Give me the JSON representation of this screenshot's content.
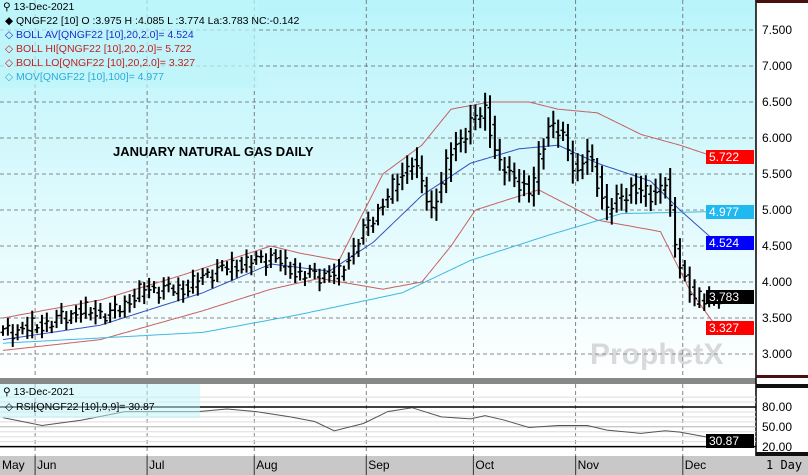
{
  "legend": {
    "date": "13-Dec-2021",
    "price": "QNGF22 [10] O :3.975 H :4.085 L :3.774 La:3.783 NC:-0.142",
    "boll_av": "BOLL AV[QNGF22 [10],20,2.0]= 4.524",
    "boll_hi": "BOLL HI[QNGF22 [10],20,2.0]= 5.722",
    "boll_lo": "BOLL LO[QNGF22 [10],20,2.0]= 3.327",
    "mov": "MOV[QNGF22 [10],100]= 4.977"
  },
  "title": "JANUARY NATURAL GAS DAILY",
  "watermark": "ProphetX",
  "rsi_legend": {
    "date": "13-Dec-2021",
    "rsi": "RSI[QNGF22 [10],9,9]= 30.87"
  },
  "badges": {
    "hi": "5.722",
    "mov": "4.977",
    "av": "4.524",
    "last": "3.783",
    "lo": "3.327",
    "rsi": "30.87"
  },
  "colors": {
    "price": "#000000",
    "boll_av": "#2040c0",
    "boll_band": "#c04040",
    "mov": "#30b0e0",
    "badge_hi": "#ff0000",
    "badge_mov": "#20b8f0",
    "badge_av": "#0000ff",
    "badge_last": "#000000"
  },
  "interval": "1 Day",
  "chart_data": [
    {
      "type": "bar",
      "title": "JANUARY NATURAL GAS DAILY",
      "symbol": "QNGF22",
      "ylim": [
        2.75,
        7.9
      ],
      "yticks": [
        "7.500",
        "7.000",
        "6.500",
        "6.000",
        "5.500",
        "5.000",
        "4.500",
        "4.000",
        "3.500",
        "3.000"
      ],
      "ytick_values": [
        7.5,
        7.0,
        6.5,
        6.0,
        5.5,
        5.0,
        4.5,
        4.0,
        3.5,
        3.0
      ],
      "months": [
        "May",
        "Jun",
        "Jul",
        "Aug",
        "Sep",
        "Oct",
        "Nov",
        "Dec"
      ],
      "month_start_day": [
        -1,
        7,
        30,
        52,
        75,
        97,
        118,
        140
      ],
      "days": 148,
      "close_keypoints": [
        [
          0,
          3.3
        ],
        [
          8,
          3.4
        ],
        [
          16,
          3.6
        ],
        [
          22,
          3.55
        ],
        [
          29,
          3.9
        ],
        [
          37,
          3.9
        ],
        [
          43,
          4.15
        ],
        [
          49,
          4.25
        ],
        [
          55,
          4.35
        ],
        [
          61,
          4.1
        ],
        [
          69,
          4.1
        ],
        [
          73,
          4.6
        ],
        [
          78,
          5.1
        ],
        [
          84,
          5.7
        ],
        [
          88,
          5.0
        ],
        [
          92,
          5.8
        ],
        [
          96,
          6.2
        ],
        [
          99,
          6.4
        ],
        [
          102,
          5.6
        ],
        [
          106,
          5.4
        ],
        [
          108,
          5.2
        ],
        [
          112,
          6.2
        ],
        [
          115,
          6.0
        ],
        [
          118,
          5.5
        ],
        [
          120,
          5.8
        ],
        [
          124,
          5.0
        ],
        [
          129,
          5.3
        ],
        [
          133,
          5.2
        ],
        [
          136,
          5.4
        ],
        [
          138,
          4.5
        ],
        [
          140,
          4.05
        ],
        [
          142,
          3.75
        ],
        [
          147,
          3.78
        ]
      ],
      "series": [
        {
          "name": "BOLL HI",
          "color": "#c86060",
          "points": [
            [
              0,
              3.5
            ],
            [
              20,
              3.75
            ],
            [
              37,
              4.1
            ],
            [
              55,
              4.5
            ],
            [
              61,
              4.4
            ],
            [
              69,
              4.3
            ],
            [
              78,
              5.5
            ],
            [
              86,
              5.9
            ],
            [
              92,
              6.4
            ],
            [
              100,
              6.5
            ],
            [
              108,
              6.5
            ],
            [
              114,
              6.4
            ],
            [
              122,
              6.35
            ],
            [
              131,
              6.05
            ],
            [
              139,
              5.9
            ],
            [
              147,
              5.72
            ]
          ]
        },
        {
          "name": "BOLL AV",
          "color": "#3050c0",
          "points": [
            [
              0,
              3.2
            ],
            [
              20,
              3.4
            ],
            [
              41,
              3.85
            ],
            [
              55,
              4.25
            ],
            [
              67,
              4.15
            ],
            [
              76,
              4.55
            ],
            [
              86,
              5.2
            ],
            [
              96,
              5.65
            ],
            [
              106,
              5.85
            ],
            [
              114,
              5.9
            ],
            [
              122,
              5.65
            ],
            [
              133,
              5.4
            ],
            [
              139,
              5.0
            ],
            [
              147,
              4.52
            ]
          ]
        },
        {
          "name": "BOLL LO",
          "color": "#c86060",
          "points": [
            [
              0,
              3.05
            ],
            [
              20,
              3.2
            ],
            [
              41,
              3.6
            ],
            [
              55,
              3.9
            ],
            [
              65,
              4.05
            ],
            [
              78,
              3.9
            ],
            [
              86,
              4.0
            ],
            [
              92,
              4.5
            ],
            [
              97,
              5.0
            ],
            [
              110,
              5.28
            ],
            [
              122,
              4.86
            ],
            [
              135,
              4.7
            ],
            [
              141,
              3.89
            ],
            [
              147,
              3.33
            ]
          ]
        },
        {
          "name": "MOV 100",
          "color": "#40b8e0",
          "points": [
            [
              0,
              3.15
            ],
            [
              41,
              3.3
            ],
            [
              61,
              3.55
            ],
            [
              82,
              3.85
            ],
            [
              96,
              4.3
            ],
            [
              112,
              4.65
            ],
            [
              127,
              4.95
            ],
            [
              147,
              4.98
            ]
          ]
        }
      ]
    },
    {
      "type": "line",
      "title": "RSI",
      "ylim": [
        0,
        100
      ],
      "yticks": [
        "80.00",
        "50.00",
        "20.00"
      ],
      "ytick_values": [
        80,
        50,
        20
      ],
      "series": [
        {
          "name": "RSI",
          "color": "#555555",
          "points": [
            [
              0,
              64
            ],
            [
              8,
              52
            ],
            [
              16,
              60
            ],
            [
              25,
              73
            ],
            [
              40,
              73
            ],
            [
              46,
              77
            ],
            [
              52,
              73
            ],
            [
              59,
              65
            ],
            [
              64,
              58
            ],
            [
              68,
              44
            ],
            [
              74,
              55
            ],
            [
              79,
              73
            ],
            [
              84,
              79
            ],
            [
              90,
              65
            ],
            [
              96,
              62
            ],
            [
              99,
              67
            ],
            [
              103,
              60
            ],
            [
              108,
              49
            ],
            [
              114,
              52
            ],
            [
              120,
              52
            ],
            [
              124,
              45
            ],
            [
              131,
              40
            ],
            [
              136,
              44
            ],
            [
              139,
              42
            ],
            [
              147,
              31
            ]
          ]
        }
      ]
    }
  ]
}
